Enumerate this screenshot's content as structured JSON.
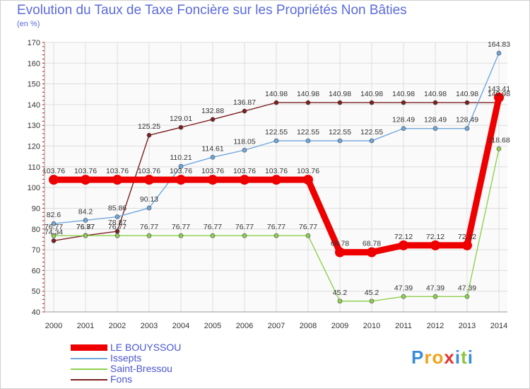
{
  "chart_data": {
    "type": "line",
    "title": "Evolution du Taux de Taxe Foncière sur les Propriétés Non Bâties",
    "subtitle": "(en %)",
    "xlabel": "",
    "ylabel": "",
    "ylim": [
      40,
      170
    ],
    "yticks": [
      40,
      50,
      60,
      70,
      80,
      90,
      100,
      110,
      120,
      130,
      140,
      150,
      160,
      170
    ],
    "categories": [
      "2000",
      "2001",
      "2002",
      "2003",
      "2004",
      "2005",
      "2006",
      "2007",
      "2008",
      "2009",
      "2010",
      "2011",
      "2012",
      "2013",
      "2014"
    ],
    "grid": true,
    "series": [
      {
        "name": "Fons",
        "color": "#7a1f1f",
        "values": [
          74.34,
          76.87,
          78.87,
          125.25,
          129.01,
          132.88,
          136.87,
          140.98,
          140.98,
          140.98,
          140.98,
          140.98,
          140.98,
          140.98,
          140.98
        ],
        "labels": [
          "74.34",
          "76.87",
          "78.87",
          "125.25",
          "129.01",
          "132.88",
          "136.87",
          "140.98",
          "140.98",
          "140.98",
          "140.98",
          "140.98",
          "140.98",
          "140.98",
          "140.98"
        ]
      },
      {
        "name": "Saint-Bressou",
        "color": "#8fd14f",
        "values": [
          76.77,
          76.77,
          76.77,
          76.77,
          76.77,
          76.77,
          76.77,
          76.77,
          76.77,
          45.2,
          45.2,
          47.39,
          47.39,
          47.39,
          118.68
        ],
        "labels": [
          "76.77",
          "76.77",
          "76.77",
          "76.77",
          "76.77",
          "76.77",
          "76.77",
          "76.77",
          "76.77",
          "45.2",
          "45.2",
          "47.39",
          "47.39",
          "47.39",
          "118.68"
        ]
      },
      {
        "name": "Issepts",
        "color": "#6fa8dc",
        "values": [
          82.6,
          84.2,
          85.86,
          90.13,
          110.21,
          114.61,
          118.05,
          122.55,
          122.55,
          122.55,
          122.55,
          128.49,
          128.49,
          128.49,
          164.83
        ],
        "labels": [
          "82.6",
          "84.2",
          "85.86",
          "90.13",
          "110.21",
          "114.61",
          "118.05",
          "122.55",
          "122.55",
          "122.55",
          "122.55",
          "128.49",
          "128.49",
          "128.49",
          "164.83"
        ]
      },
      {
        "name": "LE BOUYSSOU",
        "color": "#ee0000",
        "values": [
          103.76,
          103.76,
          103.76,
          103.76,
          103.76,
          103.76,
          103.76,
          103.76,
          103.76,
          68.78,
          68.78,
          72.12,
          72.12,
          72.12,
          143.41
        ],
        "labels": [
          "103.76",
          "103.76",
          "103.76",
          "103.76",
          "103.76",
          "103.76",
          "103.76",
          "103.76",
          "103.76",
          "68.78",
          "68.78",
          "72.12",
          "72.12",
          "72.12",
          "143.41"
        ]
      }
    ],
    "legend": [
      "LE BOUYSSOU",
      "Issepts",
      "Saint-Bressou",
      "Fons"
    ],
    "legend_position": "bottom-left"
  },
  "logo": {
    "letters": [
      "P",
      "r",
      "o",
      "x",
      "i",
      "t",
      "i"
    ],
    "colors": [
      "#3b8ed6",
      "#f2a21b",
      "#f2a21b",
      "#e8322d",
      "#3b8ed6",
      "#8cc63e",
      "#3b8ed6"
    ]
  }
}
